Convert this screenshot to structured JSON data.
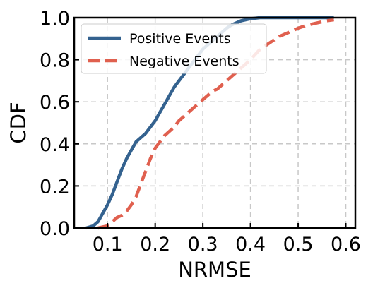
{
  "chart_data": {
    "type": "line",
    "xlabel": "NRMSE",
    "ylabel": "CDF",
    "xlim": [
      0.03,
      0.62
    ],
    "ylim": [
      0.0,
      1.0
    ],
    "xticks": [
      "0.1",
      "0.2",
      "0.3",
      "0.4",
      "0.5",
      "0.6"
    ],
    "yticks": [
      "0.0",
      "0.2",
      "0.4",
      "0.6",
      "0.8",
      "1.0"
    ],
    "grid": true,
    "legend_position": "top-left",
    "series": [
      {
        "name": "Positive Events",
        "color": "#34628f",
        "style": "solid",
        "x": [
          0.055,
          0.07,
          0.08,
          0.09,
          0.1,
          0.11,
          0.12,
          0.13,
          0.14,
          0.15,
          0.16,
          0.17,
          0.18,
          0.19,
          0.2,
          0.21,
          0.22,
          0.23,
          0.24,
          0.25,
          0.26,
          0.27,
          0.28,
          0.29,
          0.3,
          0.31,
          0.32,
          0.33,
          0.34,
          0.35,
          0.36,
          0.37,
          0.38,
          0.39,
          0.4,
          0.42,
          0.45,
          0.5,
          0.55,
          0.575
        ],
        "y": [
          0.0,
          0.01,
          0.03,
          0.07,
          0.11,
          0.16,
          0.22,
          0.28,
          0.33,
          0.37,
          0.41,
          0.43,
          0.45,
          0.48,
          0.51,
          0.55,
          0.59,
          0.63,
          0.67,
          0.7,
          0.73,
          0.76,
          0.79,
          0.82,
          0.85,
          0.87,
          0.89,
          0.91,
          0.93,
          0.95,
          0.965,
          0.975,
          0.985,
          0.99,
          0.995,
          1.0,
          1.0,
          1.0,
          1.0,
          1.0
        ]
      },
      {
        "name": "Negative Events",
        "color": "#e0604f",
        "style": "dashed",
        "x": [
          0.08,
          0.1,
          0.11,
          0.12,
          0.13,
          0.14,
          0.15,
          0.16,
          0.17,
          0.18,
          0.19,
          0.2,
          0.21,
          0.22,
          0.23,
          0.24,
          0.25,
          0.26,
          0.27,
          0.28,
          0.29,
          0.3,
          0.31,
          0.32,
          0.33,
          0.34,
          0.35,
          0.36,
          0.37,
          0.38,
          0.39,
          0.4,
          0.42,
          0.44,
          0.46,
          0.48,
          0.5,
          0.52,
          0.54,
          0.56,
          0.575
        ],
        "y": [
          0.0,
          0.01,
          0.03,
          0.05,
          0.06,
          0.08,
          0.11,
          0.15,
          0.21,
          0.27,
          0.33,
          0.38,
          0.41,
          0.44,
          0.46,
          0.48,
          0.51,
          0.53,
          0.55,
          0.57,
          0.59,
          0.61,
          0.63,
          0.65,
          0.66,
          0.68,
          0.7,
          0.72,
          0.74,
          0.76,
          0.78,
          0.8,
          0.85,
          0.88,
          0.91,
          0.93,
          0.95,
          0.965,
          0.975,
          0.985,
          0.99
        ]
      }
    ]
  }
}
